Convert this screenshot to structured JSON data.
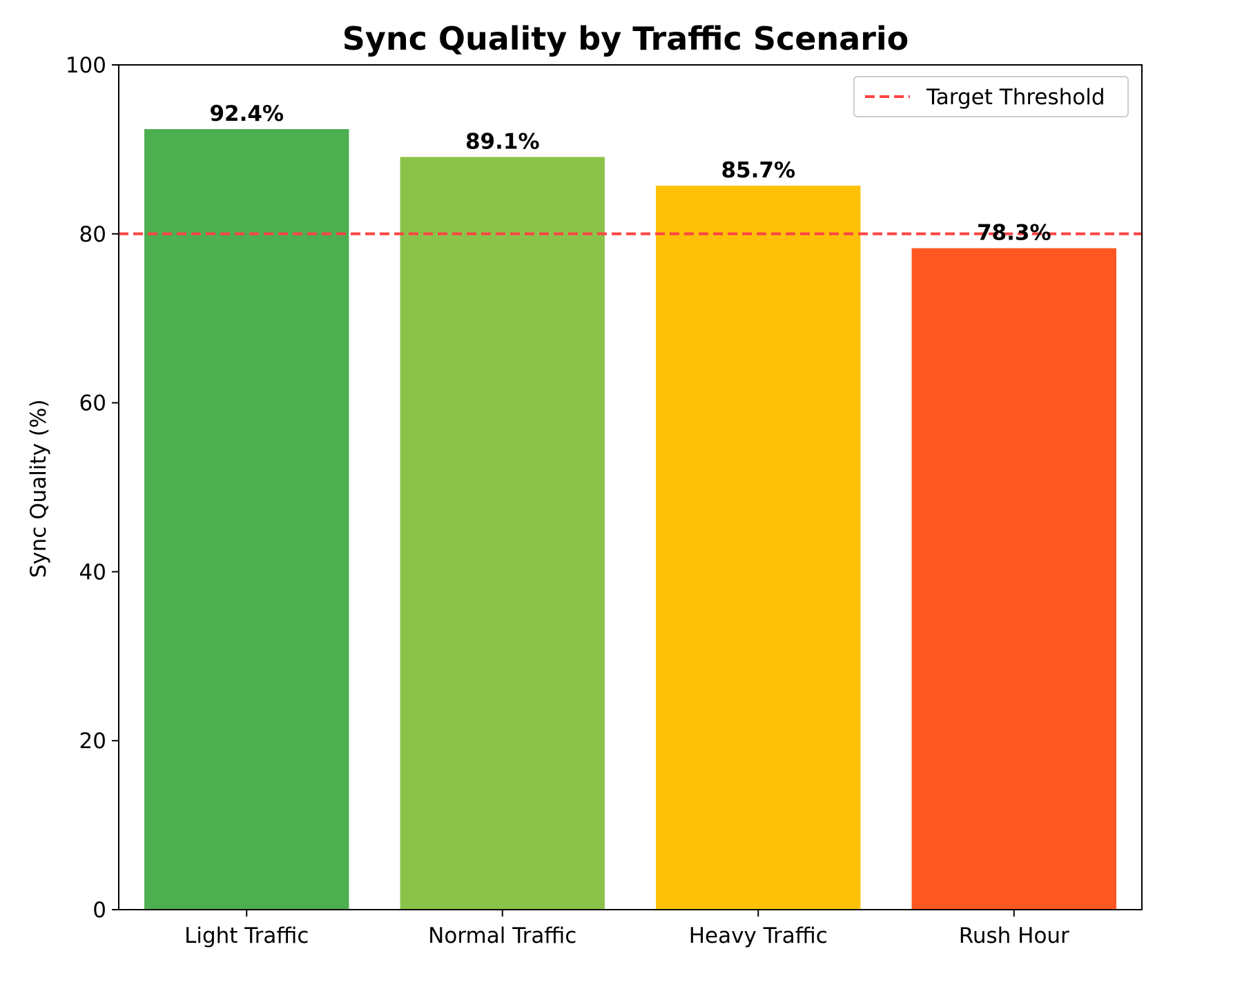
{
  "chart_data": {
    "type": "bar",
    "title": "Sync Quality by Traffic Scenario",
    "xlabel": "",
    "ylabel": "Sync Quality (%)",
    "ylim": [
      0,
      100
    ],
    "yticks": [
      0,
      20,
      40,
      60,
      80,
      100
    ],
    "categories": [
      "Light Traffic",
      "Normal Traffic",
      "Heavy Traffic",
      "Rush Hour"
    ],
    "values": [
      92.4,
      89.1,
      85.7,
      78.3
    ],
    "data_labels": [
      "92.4%",
      "89.1%",
      "85.7%",
      "78.3%"
    ],
    "colors": [
      "#4CAF50",
      "#8BC34A",
      "#FFC107",
      "#FF5722"
    ],
    "threshold": {
      "name": "Target Threshold",
      "value": 80,
      "color": "#ff4444",
      "style": "dashed"
    },
    "grid": false,
    "legend_position": "top-right"
  }
}
